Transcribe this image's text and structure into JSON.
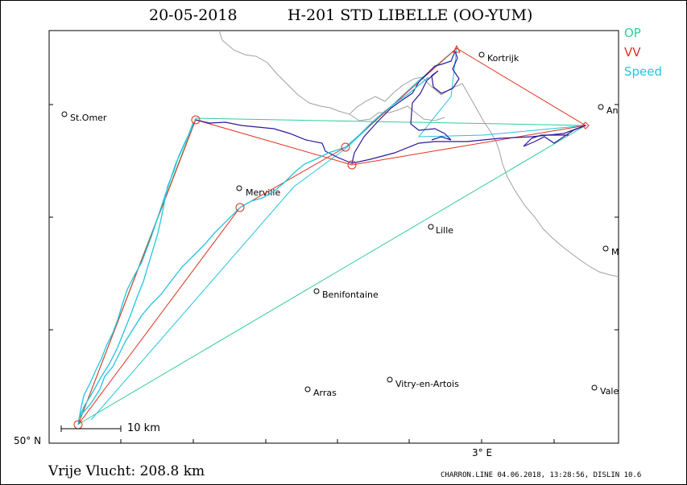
{
  "header": {
    "date": "20-05-2018",
    "glider": "H-201 STD LIBELLE (OO-YUM)"
  },
  "legend": {
    "op": {
      "label": "OP",
      "color": "#33cc99"
    },
    "vv": {
      "label": "VV",
      "color": "#e03020"
    },
    "speed": {
      "label": "Speed",
      "color": "#22c4e0"
    }
  },
  "axes": {
    "lat_label": "50° N",
    "lon_label": "3° E"
  },
  "scale_bar": {
    "label": "10 km"
  },
  "cities": [
    {
      "name": "St.Omer"
    },
    {
      "name": "Merville"
    },
    {
      "name": "Lille"
    },
    {
      "name": "Kortrijk"
    },
    {
      "name": "An"
    },
    {
      "name": "M"
    },
    {
      "name": "Benifontaine"
    },
    {
      "name": "Arras"
    },
    {
      "name": "Vitry-en-Artois"
    },
    {
      "name": "Vale"
    }
  ],
  "summary": {
    "distance": "Vrije Vlucht:  208.8 km"
  },
  "footer": "CHARRON.LINE 04.06.2018, 13:28:56, DISLIN 10.6",
  "colors": {
    "track": "#2a1a9a",
    "border": "#a0a0a0",
    "axis": "#000000"
  }
}
